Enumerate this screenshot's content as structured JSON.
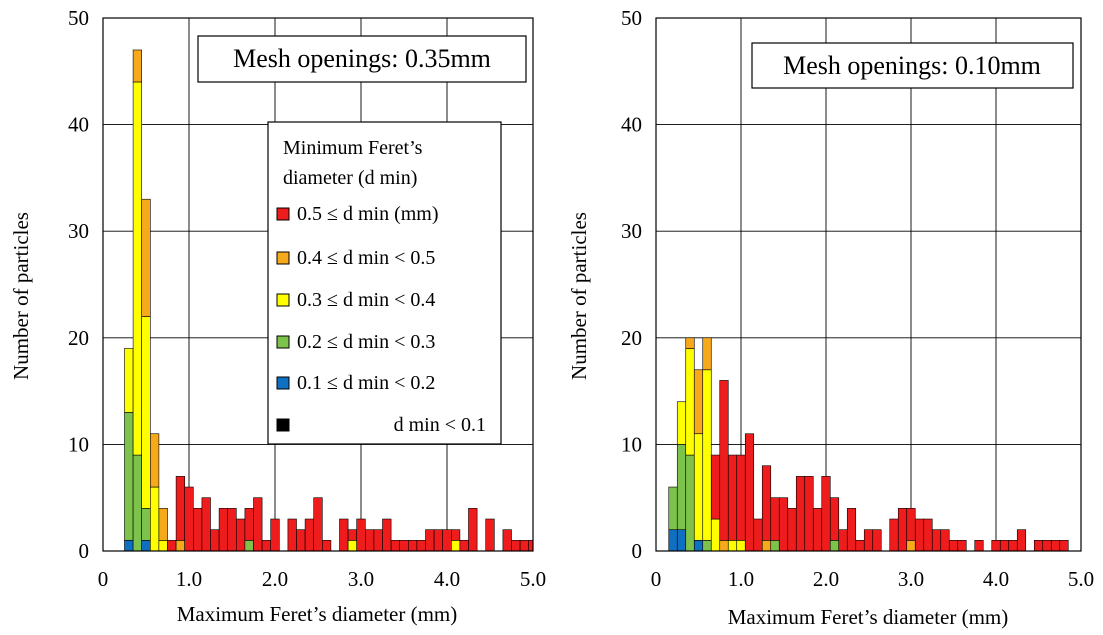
{
  "colors": {
    "d_ge_0.5": "#ee1c1c",
    "d_0.4_0.5": "#f7a91c",
    "d_0.3_0.4": "#ffff00",
    "d_0.2_0.3": "#7dc24b",
    "d_0.1_0.2": "#0f6fc0",
    "d_lt_0.1": "#000000"
  },
  "legend": {
    "title_line1": "Minimum Feret’s",
    "title_line2": "diameter (d min)",
    "items": [
      {
        "key": "d_ge_0.5",
        "label": "0.5 ≤ d min (mm)"
      },
      {
        "key": "d_0.4_0.5",
        "label": "0.4 ≤ d min < 0.5"
      },
      {
        "key": "d_0.3_0.4",
        "label": "0.3 ≤ d min < 0.4"
      },
      {
        "key": "d_0.2_0.3",
        "label": "0.2 ≤ d min < 0.3"
      },
      {
        "key": "d_0.1_0.2",
        "label": "0.1 ≤ d min < 0.2"
      },
      {
        "key": "d_lt_0.1",
        "label": "d min < 0.1"
      }
    ]
  },
  "chart_data": [
    {
      "type": "bar",
      "stacked": true,
      "annotation": "Mesh openings: 0.35mm",
      "xlabel": "Maximum Feret’s diameter (mm)",
      "ylabel": "Number of  particles",
      "xlim": [
        0,
        5.0
      ],
      "ylim": [
        0,
        50
      ],
      "xticks": [
        0,
        1.0,
        2.0,
        3.0,
        4.0,
        5.0
      ],
      "xticklabels": [
        "0",
        "1.0",
        "2.0",
        "3.0",
        "4.0",
        "5.0"
      ],
      "yticks": [
        0,
        10,
        20,
        30,
        40,
        50
      ],
      "grid": true,
      "legend_position": "right",
      "bin_width": 0.1,
      "bars": [
        {
          "x": 0.3,
          "d_0.3_0.4": 6,
          "d_0.2_0.3": 12,
          "d_0.1_0.2": 1
        },
        {
          "x": 0.4,
          "d_0.4_0.5": 3,
          "d_0.3_0.4": 35,
          "d_0.2_0.3": 9
        },
        {
          "x": 0.5,
          "d_0.4_0.5": 11,
          "d_0.3_0.4": 18,
          "d_0.2_0.3": 3,
          "d_0.1_0.2": 1
        },
        {
          "x": 0.6,
          "d_0.4_0.5": 5,
          "d_0.3_0.4": 6
        },
        {
          "x": 0.7,
          "d_0.4_0.5": 3,
          "d_0.3_0.4": 1
        },
        {
          "x": 0.8,
          "d_ge_0.5": 1
        },
        {
          "x": 0.9,
          "d_ge_0.5": 6,
          "d_0.4_0.5": 1
        },
        {
          "x": 1.0,
          "d_ge_0.5": 6
        },
        {
          "x": 1.1,
          "d_ge_0.5": 4
        },
        {
          "x": 1.2,
          "d_ge_0.5": 5
        },
        {
          "x": 1.3,
          "d_ge_0.5": 2
        },
        {
          "x": 1.4,
          "d_ge_0.5": 4
        },
        {
          "x": 1.5,
          "d_ge_0.5": 4
        },
        {
          "x": 1.6,
          "d_ge_0.5": 3
        },
        {
          "x": 1.7,
          "d_ge_0.5": 3,
          "d_0.2_0.3": 1
        },
        {
          "x": 1.8,
          "d_ge_0.5": 5
        },
        {
          "x": 1.9,
          "d_ge_0.5": 1
        },
        {
          "x": 2.0,
          "d_ge_0.5": 3
        },
        {
          "x": 2.2,
          "d_ge_0.5": 3
        },
        {
          "x": 2.3,
          "d_ge_0.5": 2
        },
        {
          "x": 2.4,
          "d_ge_0.5": 3
        },
        {
          "x": 2.5,
          "d_ge_0.5": 5
        },
        {
          "x": 2.6,
          "d_ge_0.5": 1
        },
        {
          "x": 2.8,
          "d_ge_0.5": 3
        },
        {
          "x": 2.9,
          "d_ge_0.5": 1,
          "d_0.3_0.4": 1
        },
        {
          "x": 3.0,
          "d_ge_0.5": 3
        },
        {
          "x": 3.1,
          "d_ge_0.5": 2
        },
        {
          "x": 3.2,
          "d_ge_0.5": 2
        },
        {
          "x": 3.3,
          "d_ge_0.5": 3
        },
        {
          "x": 3.4,
          "d_ge_0.5": 1
        },
        {
          "x": 3.5,
          "d_ge_0.5": 1
        },
        {
          "x": 3.6,
          "d_ge_0.5": 1
        },
        {
          "x": 3.7,
          "d_ge_0.5": 1
        },
        {
          "x": 3.8,
          "d_ge_0.5": 2
        },
        {
          "x": 3.9,
          "d_ge_0.5": 2
        },
        {
          "x": 4.0,
          "d_ge_0.5": 2
        },
        {
          "x": 4.1,
          "d_ge_0.5": 1,
          "d_0.3_0.4": 1
        },
        {
          "x": 4.2,
          "d_ge_0.5": 1
        },
        {
          "x": 4.3,
          "d_ge_0.5": 4
        },
        {
          "x": 4.5,
          "d_ge_0.5": 3
        },
        {
          "x": 4.7,
          "d_ge_0.5": 2
        },
        {
          "x": 4.8,
          "d_ge_0.5": 1
        },
        {
          "x": 4.9,
          "d_ge_0.5": 1
        },
        {
          "x": 5.0,
          "d_ge_0.5": 1
        }
      ]
    },
    {
      "type": "bar",
      "stacked": true,
      "annotation": "Mesh openings: 0.10mm",
      "xlabel": "Maximum Feret’s diameter (mm)",
      "ylabel": "Number of  particles",
      "xlim": [
        0,
        5.0
      ],
      "ylim": [
        0,
        50
      ],
      "xticks": [
        0,
        1.0,
        2.0,
        3.0,
        4.0,
        5.0
      ],
      "xticklabels": [
        "0",
        "1.0",
        "2.0",
        "3.0",
        "4.0",
        "5.0"
      ],
      "yticks": [
        0,
        10,
        20,
        30,
        40,
        50
      ],
      "grid": true,
      "bin_width": 0.1,
      "bars": [
        {
          "x": 0.2,
          "d_0.2_0.3": 4,
          "d_0.1_0.2": 2
        },
        {
          "x": 0.3,
          "d_0.3_0.4": 4,
          "d_0.2_0.3": 8,
          "d_0.1_0.2": 2
        },
        {
          "x": 0.4,
          "d_0.4_0.5": 1,
          "d_0.3_0.4": 10,
          "d_0.2_0.3": 9
        },
        {
          "x": 0.5,
          "d_0.4_0.5": 6,
          "d_0.3_0.4": 10,
          "d_0.1_0.2": 1
        },
        {
          "x": 0.6,
          "d_0.4_0.5": 3,
          "d_0.3_0.4": 16,
          "d_0.2_0.3": 1
        },
        {
          "x": 0.7,
          "d_ge_0.5": 6,
          "d_0.3_0.4": 3
        },
        {
          "x": 0.8,
          "d_ge_0.5": 15,
          "d_0.4_0.5": 1
        },
        {
          "x": 0.9,
          "d_ge_0.5": 8,
          "d_0.3_0.4": 1
        },
        {
          "x": 1.0,
          "d_ge_0.5": 8,
          "d_0.3_0.4": 1
        },
        {
          "x": 1.1,
          "d_ge_0.5": 11
        },
        {
          "x": 1.2,
          "d_ge_0.5": 3
        },
        {
          "x": 1.3,
          "d_ge_0.5": 7,
          "d_0.4_0.5": 1
        },
        {
          "x": 1.4,
          "d_ge_0.5": 4,
          "d_0.2_0.3": 1
        },
        {
          "x": 1.5,
          "d_ge_0.5": 5
        },
        {
          "x": 1.6,
          "d_ge_0.5": 4
        },
        {
          "x": 1.7,
          "d_ge_0.5": 7
        },
        {
          "x": 1.8,
          "d_ge_0.5": 7
        },
        {
          "x": 1.9,
          "d_ge_0.5": 4
        },
        {
          "x": 2.0,
          "d_ge_0.5": 7
        },
        {
          "x": 2.1,
          "d_ge_0.5": 4,
          "d_0.2_0.3": 1
        },
        {
          "x": 2.2,
          "d_ge_0.5": 2
        },
        {
          "x": 2.3,
          "d_ge_0.5": 4
        },
        {
          "x": 2.4,
          "d_ge_0.5": 1
        },
        {
          "x": 2.5,
          "d_ge_0.5": 2
        },
        {
          "x": 2.6,
          "d_ge_0.5": 2
        },
        {
          "x": 2.8,
          "d_ge_0.5": 3
        },
        {
          "x": 2.9,
          "d_ge_0.5": 4
        },
        {
          "x": 3.0,
          "d_ge_0.5": 3,
          "d_0.4_0.5": 1
        },
        {
          "x": 3.1,
          "d_ge_0.5": 3
        },
        {
          "x": 3.2,
          "d_ge_0.5": 3
        },
        {
          "x": 3.3,
          "d_ge_0.5": 2
        },
        {
          "x": 3.4,
          "d_ge_0.5": 2
        },
        {
          "x": 3.5,
          "d_ge_0.5": 1
        },
        {
          "x": 3.6,
          "d_ge_0.5": 1
        },
        {
          "x": 3.8,
          "d_ge_0.5": 1
        },
        {
          "x": 4.0,
          "d_ge_0.5": 1
        },
        {
          "x": 4.1,
          "d_ge_0.5": 1
        },
        {
          "x": 4.2,
          "d_ge_0.5": 1
        },
        {
          "x": 4.3,
          "d_ge_0.5": 2
        },
        {
          "x": 4.5,
          "d_ge_0.5": 1
        },
        {
          "x": 4.6,
          "d_ge_0.5": 1
        },
        {
          "x": 4.7,
          "d_ge_0.5": 1
        },
        {
          "x": 4.8,
          "d_ge_0.5": 1
        }
      ]
    }
  ]
}
